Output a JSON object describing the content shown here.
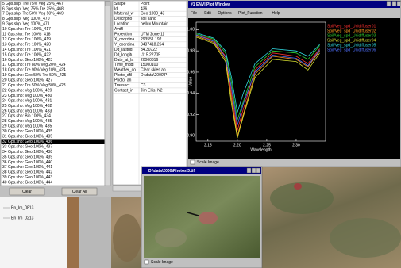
{
  "list": {
    "items": [
      "5 Gps.shp: Tre 75% Veg 25%_467",
      "6 Gps.shp: Veg 75% Tre 25%_468",
      "7 Gps.shp: Tre 50% Veg 50%_469",
      "8 Gps.shp: Veg 100%_470",
      "9 Gps.shp: Veg 100%_471",
      "10 Gps.shp: Tre 100%_417",
      "11 Gps.shp: Tre 100%_418",
      "12 Gps.shp: Tre 100%_419",
      "13 Gps.shp: Tre 100%_420",
      "14 Gps.shp: Tre 100%_421",
      "15 Gps.shp: Tre 100%_422",
      "16 Gps.shp: Geo 100%_423",
      "17 Gps.shp: Tre 80% Veg 20%_424",
      "18 Gps.shp: Tre 90% Veg 10%_424",
      "19 Gps.shp: Geo 50% Tre 50%_425",
      "20 Gps.shp: Geo 100%_427",
      "21 Gps.shp: Tre 50% Veg 50%_428",
      "22 Gps.shp: Veg 100%_429",
      "23 Gps.shp: Veg 100%_430",
      "24 Gps.shp: Veg 100%_431",
      "25 Gps.shp: Veg 100%_432",
      "26 Gps.shp: Veg 100%_433",
      "27 Gps.shp: Bio 100%_434",
      "28 Gps.shp: Veg 100%_435",
      "29 Gps.shp: Veg 100%_435",
      "30 Gps.shp: Geo 100%_435",
      "31 Gps.shp: Geo 100%_435",
      "32 Gps.shp: Geo 100%_436",
      "33 Gps.shp: Geo 100%_437",
      "34 Gps.shp: Geo 100%_438",
      "35 Gps.shp: Geo 100%_439",
      "36 Gps.shp: Geo 100%_440",
      "37 Gps.shp: Geo 100%_441",
      "38 Gps.shp: Geo 100%_442",
      "39 Gps.shp: Geo 100%_443",
      "40 Gps.shp: Geo 100%_444"
    ],
    "selected": 27,
    "buttons": [
      "Clear",
      "Clear All"
    ],
    "tree": [
      "En_Im_0813",
      "En_Im_0213"
    ]
  },
  "attributes": {
    "rows": [
      [
        "Shape",
        "Point"
      ],
      [
        "Id",
        "436"
      ],
      [
        "Material_w",
        "Geo 1003_43"
      ],
      [
        "Descriptio",
        "soil sand"
      ],
      [
        "Location",
        "bellux Mountain"
      ],
      [
        "Avdfl",
        ""
      ],
      [
        "Projection",
        "UTM Zone 11"
      ],
      [
        "X_coordina",
        "293551.192"
      ],
      [
        "Y_coordina",
        "3437418.264"
      ],
      [
        "Dd_latitud",
        "34.30722"
      ],
      [
        "Dd_longitu",
        "-115.22705"
      ],
      [
        "Date_at_la",
        "20000816"
      ],
      [
        "Time_mddl",
        "15000100"
      ],
      [
        "Weather_co",
        "Clear skies an"
      ],
      [
        "Photo_dfil",
        "D:\\data\\2000\\P"
      ],
      [
        "Photo_an",
        ""
      ],
      [
        "Transect",
        "C3"
      ],
      [
        "Contact_in",
        "Jim Ellis, N2"
      ]
    ]
  },
  "plot_window": {
    "title": "#1 ENVI Plot Window",
    "menu": [
      "File",
      "Edit",
      "Options",
      "Plot_Function",
      "Help"
    ],
    "checkbox": "Scale Image",
    "plot": {
      "type": "line",
      "x_label": "Wavelength",
      "y_label": "Value",
      "xlim": [
        2.13,
        2.35
      ],
      "ylim": [
        0.895,
        1.007
      ],
      "xticks": [
        2.15,
        {
          "value": 2.2,
          "label": "2.20"
        },
        2.25,
        {
          "value": 2.3,
          "label": "2.30"
        }
      ],
      "yticks": [
        {
          "value": 1,
          "label": "1.00"
        },
        0.98,
        0.96,
        0.94,
        0.92,
        {
          "value": 0.9,
          "label": "0.90"
        }
      ],
      "x": [
        2.13,
        2.16,
        2.18,
        2.19,
        2.2,
        2.21,
        2.23,
        2.26,
        2.3,
        2.32,
        2.34
      ],
      "series": [
        {
          "name": "Soil/Veg_spd_Unidiffuser01",
          "color": "#ff3030",
          "values": [
            0.995,
            0.99,
            0.975,
            0.94,
            0.905,
            0.925,
            0.962,
            0.978,
            0.975,
            0.968,
            0.982
          ]
        },
        {
          "name": "Soil/Veg_spd_Unidiffuser02",
          "color": "#ff9a20",
          "values": [
            0.994,
            0.988,
            0.972,
            0.935,
            0.9,
            0.92,
            0.958,
            0.975,
            0.972,
            0.965,
            0.98
          ]
        },
        {
          "name": "Soil/Veg_spd_Unidiffuser03",
          "color": "#30d030",
          "values": [
            0.996,
            0.991,
            0.978,
            0.95,
            0.915,
            0.932,
            0.965,
            0.98,
            0.978,
            0.972,
            0.985
          ]
        },
        {
          "name": "Soil/Veg_spd_Unidiffuser04",
          "color": "#d8e030",
          "values": [
            0.993,
            0.987,
            0.97,
            0.93,
            0.898,
            0.918,
            0.955,
            0.972,
            0.97,
            0.962,
            0.978
          ]
        },
        {
          "name": "Soil/Veg_spd_Unidiffuser05",
          "color": "#30d8e0",
          "values": [
            0.997,
            0.992,
            0.98,
            0.955,
            0.922,
            0.94,
            0.968,
            0.982,
            0.98,
            0.975,
            0.986
          ]
        },
        {
          "name": "Soil/Veg_spd_Unidiffuser06",
          "color": "#5070ff",
          "values": [
            0.995,
            0.989,
            0.974,
            0.945,
            0.91,
            0.93,
            0.96,
            0.976,
            0.973,
            0.966,
            0.981
          ]
        }
      ]
    }
  },
  "image_window": {
    "title": "D:\\data\\2000\\Photos\\3.tif",
    "checkbox": "Scale Image"
  }
}
